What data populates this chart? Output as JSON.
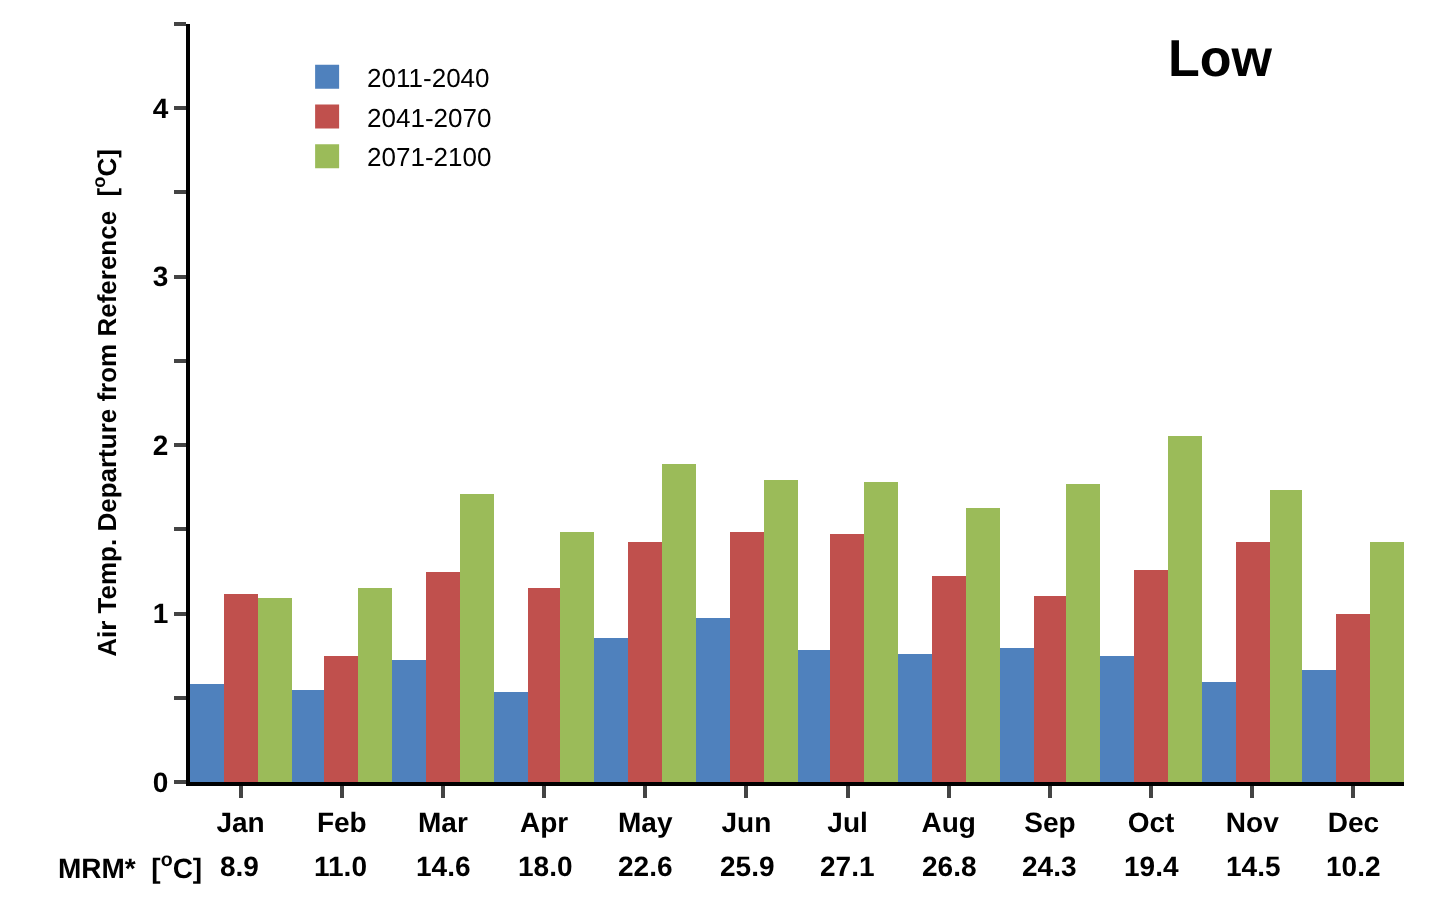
{
  "chart_data": {
    "type": "bar",
    "title": "Low",
    "ylabel": "Air Temp. Departure from Reference  [$^{o}$C]",
    "categories": [
      "Jan",
      "Feb",
      "Mar",
      "Apr",
      "May",
      "Jun",
      "Jul",
      "Aug",
      "Sep",
      "Oct",
      "Nov",
      "Dec"
    ],
    "series": [
      {
        "name": "2011-2040",
        "color": "#4f81bd",
        "values": [
          0.58,
          0.55,
          0.72,
          0.53,
          0.86,
          0.97,
          0.78,
          0.76,
          0.8,
          0.75,
          0.59,
          0.67
        ]
      },
      {
        "name": "2041-2070",
        "color": "#c0504d",
        "values": [
          1.12,
          0.75,
          1.25,
          1.15,
          1.43,
          1.48,
          1.47,
          1.22,
          1.1,
          1.26,
          1.43,
          1.0
        ]
      },
      {
        "name": "2071-2100",
        "color": "#9bbb59",
        "values": [
          1.09,
          1.15,
          1.71,
          1.48,
          1.89,
          1.79,
          1.78,
          1.63,
          1.77,
          2.05,
          1.73,
          1.42
        ]
      }
    ],
    "ylim": [
      0,
      4.5
    ],
    "yticks": [
      0,
      {
        "value": 0.5,
        "label": null
      },
      1,
      {
        "value": 1.5,
        "label": null
      },
      2,
      {
        "value": 2.5,
        "label": null
      },
      3,
      {
        "value": 3.5,
        "label": null
      },
      4,
      {
        "value": 4.5,
        "label": null
      }
    ],
    "legend": "top left",
    "annotations": [
      "MRM*  [$^{o}$C]",
      "8.9",
      "11.0",
      "14.6",
      "18.0",
      "22.6",
      "25.9",
      "27.1",
      "26.8",
      "24.3",
      "19.4",
      "14.5",
      "10.2"
    ]
  }
}
